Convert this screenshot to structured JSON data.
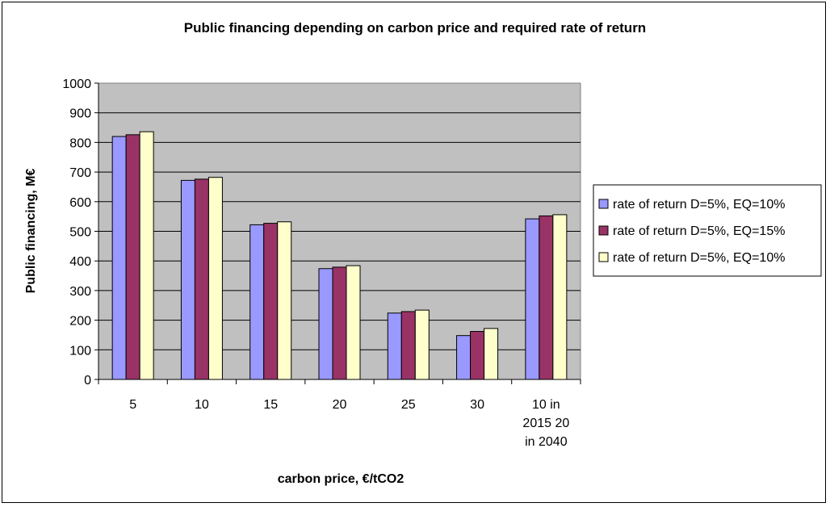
{
  "chart_data": {
    "type": "bar",
    "title": "Public financing depending on carbon price and required rate of return",
    "xlabel": "carbon price, €/tCO2",
    "ylabel": "Public financing, M€",
    "categories": [
      [
        "5"
      ],
      [
        "10"
      ],
      [
        "15"
      ],
      [
        "20"
      ],
      [
        "25"
      ],
      [
        "30"
      ],
      [
        "10 in",
        "2015 20",
        "in 2040"
      ]
    ],
    "ylim": [
      0,
      1000
    ],
    "yticks": [
      0,
      100,
      200,
      300,
      400,
      500,
      600,
      700,
      800,
      900,
      1000
    ],
    "grid": true,
    "legend_position": "right",
    "plot_background": "#c0c0c0",
    "series": [
      {
        "name": "rate of return D=5%, EQ=10%",
        "color": "#9999ff",
        "values": [
          820,
          672,
          522,
          374,
          224,
          148,
          542
        ]
      },
      {
        "name": "rate of return D=5%, EQ=15%",
        "color": "#993366",
        "values": [
          826,
          676,
          527,
          379,
          229,
          162,
          552
        ]
      },
      {
        "name": "rate of return D=5%, EQ=10%",
        "color": "#ffffcc",
        "values": [
          836,
          682,
          532,
          384,
          234,
          172,
          556
        ]
      }
    ]
  }
}
